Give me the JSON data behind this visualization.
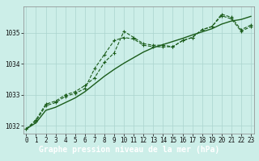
{
  "title": "Graphe pression niveau de la mer (hPa)",
  "background_color": "#cceee8",
  "grid_color": "#aad4ce",
  "line_color": "#1a5c1a",
  "x_values": [
    0,
    1,
    2,
    3,
    4,
    5,
    6,
    7,
    8,
    9,
    10,
    11,
    12,
    13,
    14,
    15,
    16,
    17,
    18,
    19,
    20,
    21,
    22,
    23
  ],
  "series1": [
    1031.9,
    1032.2,
    1032.7,
    1032.8,
    1033.0,
    1033.1,
    1033.3,
    1033.55,
    1034.05,
    1034.35,
    1035.05,
    1034.85,
    1034.65,
    1034.6,
    1034.6,
    1034.55,
    1034.75,
    1034.85,
    1035.1,
    1035.2,
    1035.6,
    1035.5,
    1035.1,
    1035.25
  ],
  "series2": [
    1031.9,
    1032.15,
    1032.65,
    1032.75,
    1032.95,
    1033.05,
    1033.2,
    1033.85,
    1034.3,
    1034.75,
    1034.85,
    1034.8,
    1034.6,
    1034.55,
    1034.55,
    1034.55,
    1034.75,
    1034.85,
    1035.1,
    1035.2,
    1035.55,
    1035.45,
    1035.05,
    1035.2
  ],
  "series3": [
    1031.9,
    1032.1,
    1032.5,
    1032.6,
    1032.75,
    1032.9,
    1033.1,
    1033.35,
    1033.6,
    1033.82,
    1034.02,
    1034.2,
    1034.38,
    1034.52,
    1034.62,
    1034.72,
    1034.82,
    1034.93,
    1035.03,
    1035.13,
    1035.28,
    1035.38,
    1035.43,
    1035.53
  ],
  "ylim_min": 1031.75,
  "ylim_max": 1035.85,
  "yticks": [
    1032,
    1033,
    1034,
    1035
  ],
  "xticks": [
    0,
    1,
    2,
    3,
    4,
    5,
    6,
    7,
    8,
    9,
    10,
    11,
    12,
    13,
    14,
    15,
    16,
    17,
    18,
    19,
    20,
    21,
    22,
    23
  ],
  "title_fontsize": 7,
  "tick_fontsize": 5.5,
  "title_bg": "#2d7a2d",
  "title_fg": "#ffffff"
}
